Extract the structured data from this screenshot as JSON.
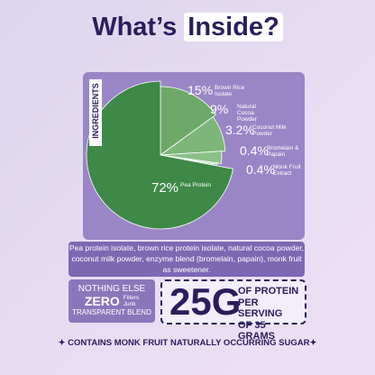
{
  "header": {
    "title_start": "What’s",
    "title_highlight": "Inside?"
  },
  "chart_data": {
    "type": "pie",
    "axis_label": "INGREDIENTS",
    "categories": [
      "Brown Rice Isolate",
      "Natural Cocoa Powder",
      "Coconut Milk Powder",
      "Bromelain & Papain",
      "Monk Fruit Extract",
      "Pea Protein"
    ],
    "values": [
      15,
      9,
      3.2,
      0.4,
      0.4,
      72
    ],
    "value_labels": [
      "15%",
      "9%",
      "3.2%",
      "0.4%",
      "0.4%",
      "72%"
    ],
    "colors": [
      "#6da86a",
      "#7db57a",
      "#8cc089",
      "#9ccb98",
      "#a9d3a5",
      "#3e8848"
    ]
  },
  "description": "Pea protein isolate, brown rice protein isolate, natural cocoa powder, coconut milk powder, enzyme blend (bromelain, papain), monk fruit as sweetener.",
  "badge_left": {
    "line1": "NOTHING ELSE",
    "zero": "ZERO",
    "fillers": "Fillers",
    "junk": "Junk",
    "line3": "TRANSPARENT BLEND"
  },
  "badge_right": {
    "amount": "25G",
    "line1": "OF PROTEIN",
    "line2": "PER SERVING",
    "line3": "OF 35 GRAMS"
  },
  "footer": "✦ CONTAINS MONK FRUIT NATURALLY OCCURRING SUGAR✦"
}
